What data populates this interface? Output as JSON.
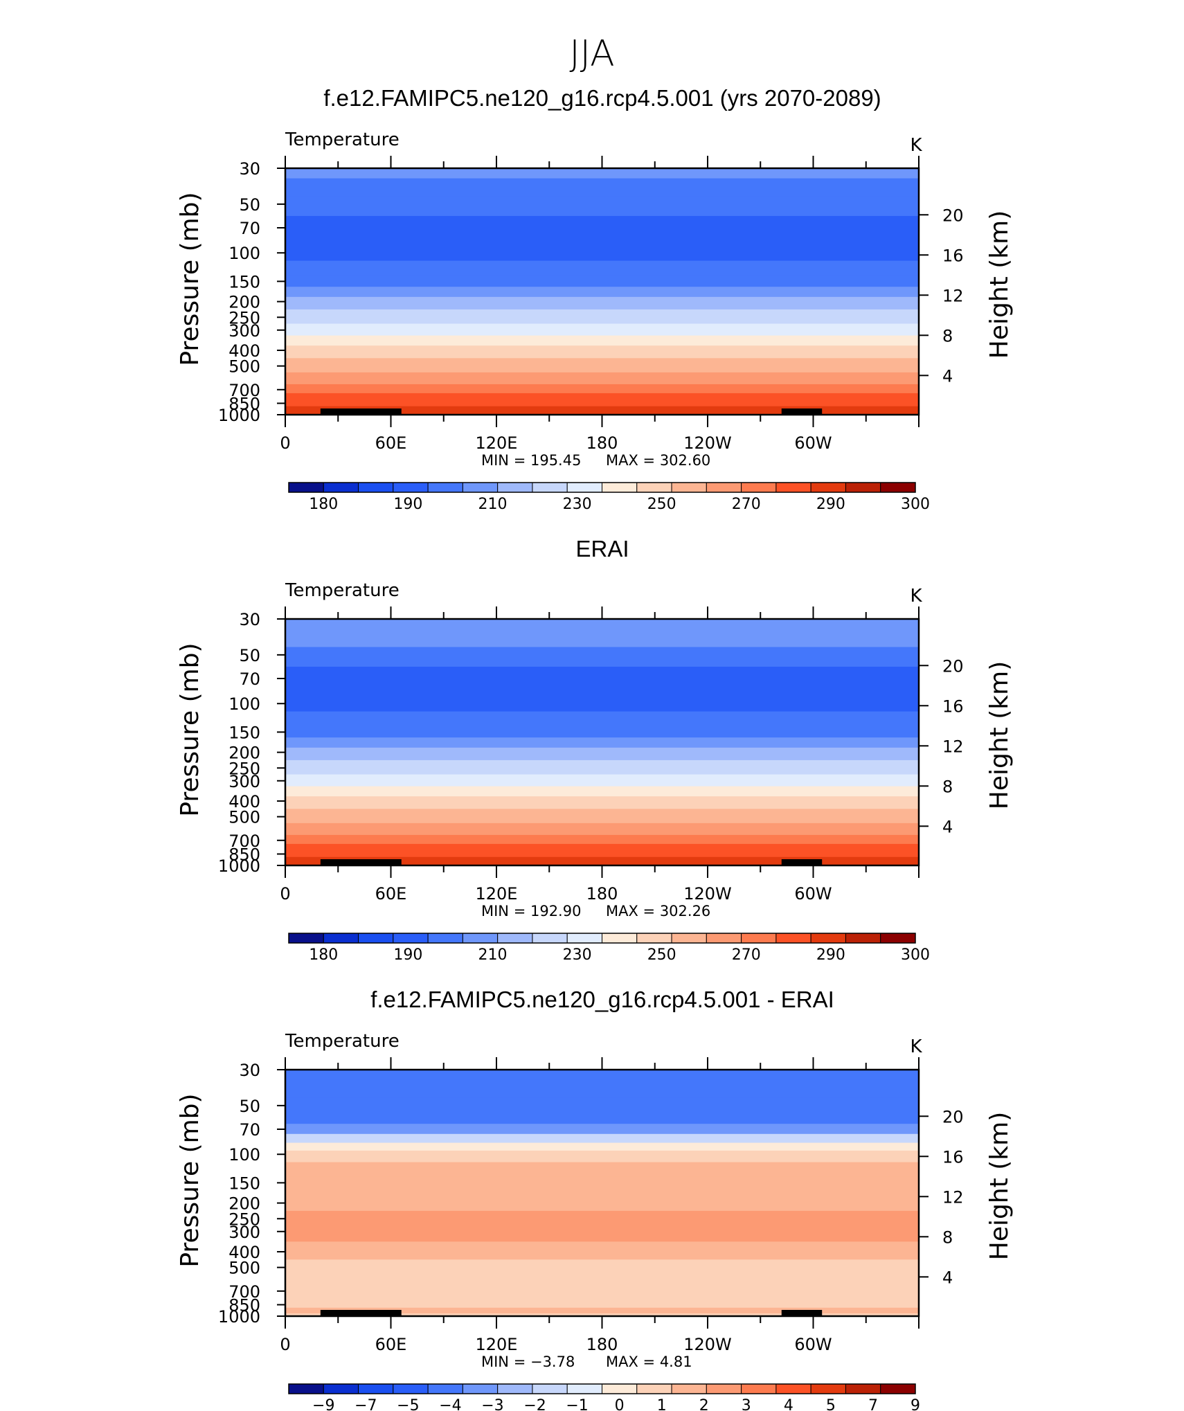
{
  "figure_title": "JJA",
  "colormap": [
    "#08108a",
    "#0a2fd0",
    "#1a4ff0",
    "#2a5ef8",
    "#4477fb",
    "#6f97fb",
    "#9fb9fb",
    "#c7d7fb",
    "#e1ecfd",
    "#fdebd9",
    "#fcd2b8",
    "#fcb593",
    "#fc9a73",
    "#fd7b4f",
    "#fc5226",
    "#e33b0f",
    "#bb2106",
    "#8b0000"
  ],
  "colors": {
    "land_bar": "#000000",
    "frame": "#000000",
    "background": "#ffffff"
  },
  "chart_data": [
    {
      "type": "heatmap",
      "title": "f.e12.FAMIPC5.ne120_g16.rcp4.5.001 (yrs 2070-2089)",
      "variable": "Temperature",
      "units": "K",
      "ylabel_left": "Pressure (mb)",
      "ylabel_right": "Height (km)",
      "y_ticks_left": [
        30,
        50,
        70,
        100,
        150,
        200,
        250,
        300,
        400,
        500,
        700,
        850,
        1000
      ],
      "y_ticks_right": [
        20,
        16,
        12,
        8,
        4
      ],
      "x_ticks": [
        "0",
        "60E",
        "120E",
        "180",
        "120W",
        "60W"
      ],
      "x_range": [
        0,
        360
      ],
      "y_range": [
        30,
        1000
      ],
      "y_scale": "log-pressure",
      "min_label": "MIN  =  195.45",
      "max_label": "MAX  =  302.60",
      "colorbar_ticks": [
        "180",
        "190",
        "210",
        "230",
        "250",
        "270",
        "290",
        "300"
      ],
      "profile_levels": [
        30,
        40,
        50,
        70,
        100,
        125,
        150,
        175,
        200,
        250,
        300,
        350,
        400,
        500,
        600,
        700,
        775,
        850,
        925,
        1000
      ],
      "profile_color_index": [
        5,
        4,
        4,
        3,
        3,
        4,
        4,
        5,
        6,
        7,
        8,
        9,
        10,
        11,
        12,
        13,
        14,
        14,
        15,
        15
      ]
    },
    {
      "type": "heatmap",
      "title": "ERAI",
      "variable": "Temperature",
      "units": "K",
      "ylabel_left": "Pressure (mb)",
      "ylabel_right": "Height (km)",
      "y_ticks_left": [
        30,
        50,
        70,
        100,
        150,
        200,
        250,
        300,
        400,
        500,
        700,
        850,
        1000
      ],
      "y_ticks_right": [
        20,
        16,
        12,
        8,
        4
      ],
      "x_ticks": [
        "0",
        "60E",
        "120E",
        "180",
        "120W",
        "60W"
      ],
      "x_range": [
        0,
        360
      ],
      "y_range": [
        30,
        1000
      ],
      "y_scale": "log-pressure",
      "min_label": "MIN  =  192.90",
      "max_label": "MAX  =  302.26",
      "colorbar_ticks": [
        "180",
        "190",
        "210",
        "230",
        "250",
        "270",
        "290",
        "300"
      ],
      "profile_levels": [
        30,
        40,
        50,
        70,
        100,
        125,
        150,
        175,
        200,
        250,
        300,
        350,
        400,
        500,
        600,
        700,
        775,
        850,
        925,
        1000
      ],
      "profile_color_index": [
        5,
        5,
        4,
        3,
        3,
        4,
        4,
        5,
        6,
        7,
        8,
        9,
        10,
        11,
        12,
        13,
        14,
        14,
        15,
        15
      ]
    },
    {
      "type": "heatmap",
      "title": "f.e12.FAMIPC5.ne120_g16.rcp4.5.001 - ERAI",
      "variable": "Temperature",
      "units": "K",
      "ylabel_left": "Pressure (mb)",
      "ylabel_right": "Height (km)",
      "y_ticks_left": [
        30,
        50,
        70,
        100,
        150,
        200,
        250,
        300,
        400,
        500,
        700,
        850,
        1000
      ],
      "y_ticks_right": [
        20,
        16,
        12,
        8,
        4
      ],
      "x_ticks": [
        "0",
        "60E",
        "120E",
        "180",
        "120W",
        "60W"
      ],
      "x_range": [
        0,
        360
      ],
      "y_range": [
        30,
        1000
      ],
      "y_scale": "log-pressure",
      "min_label": "MIN  =   −3.78",
      "max_label": "MAX  =     4.81",
      "colorbar_ticks": [
        "−9",
        "−7",
        "−5",
        "−4",
        "−3",
        "−2",
        "−1",
        "0",
        "1",
        "2",
        "3",
        "4",
        "5",
        "7",
        "9"
      ],
      "profile_levels": [
        30,
        40,
        50,
        60,
        70,
        80,
        90,
        100,
        125,
        150,
        200,
        250,
        300,
        400,
        500,
        600,
        700,
        850,
        925,
        1000
      ],
      "profile_color_index": [
        4,
        4,
        4,
        4,
        5,
        7,
        9,
        10,
        11,
        11,
        11,
        12,
        12,
        11,
        10,
        10,
        10,
        10,
        11,
        10
      ]
    }
  ]
}
